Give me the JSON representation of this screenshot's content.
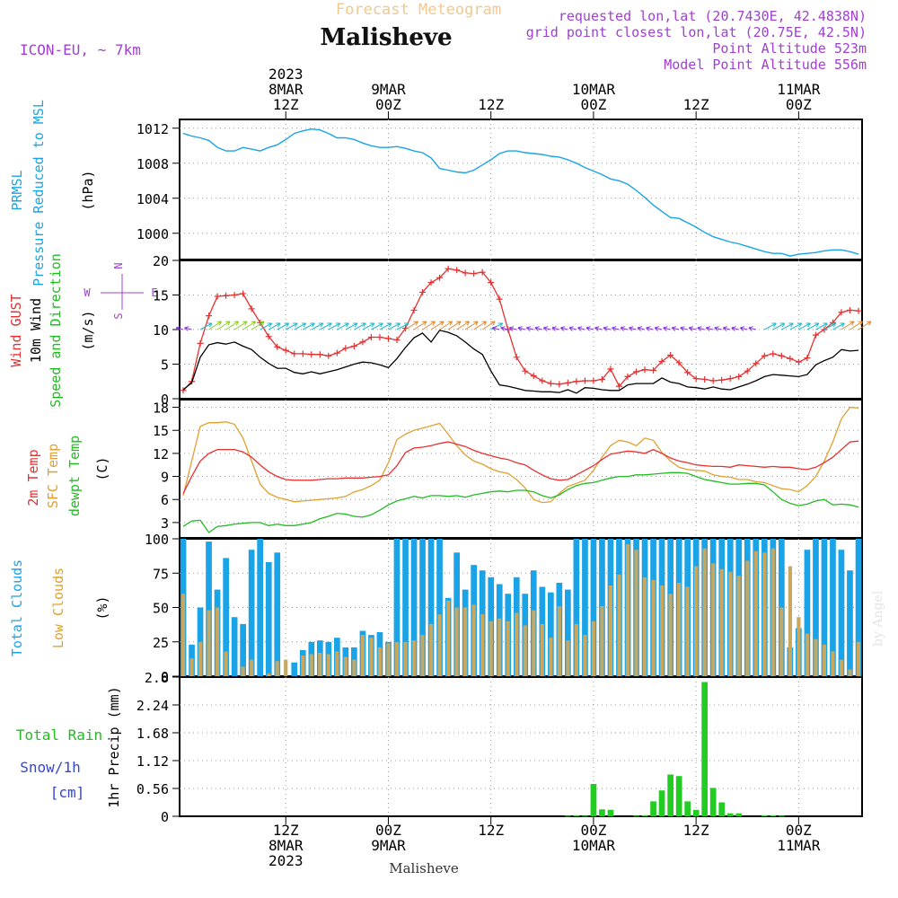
{
  "header": {
    "title_top": "Forecast Meteogram",
    "location": "Malisheve",
    "model": "ICON-EU, ~ 7km",
    "requested": "requested lon,lat (20.7430E, 42.4838N)",
    "grid_point": "grid point closest lon,lat (20.75E, 42.5N)",
    "point_altitude": "Point Altitude 523m",
    "model_altitude": "Model Point Altitude 556m",
    "watermark": "by Angel",
    "bottom_location": "Malisheve"
  },
  "time_axis": {
    "top_labels": [
      {
        "hour": 12,
        "lines": [
          "2023",
          "8MAR",
          "12Z"
        ]
      },
      {
        "hour": 24,
        "lines": [
          "9MAR",
          "00Z"
        ]
      },
      {
        "hour": 36,
        "lines": [
          "12Z"
        ]
      },
      {
        "hour": 48,
        "lines": [
          "10MAR",
          "00Z"
        ]
      },
      {
        "hour": 60,
        "lines": [
          "12Z"
        ]
      },
      {
        "hour": 72,
        "lines": [
          "11MAR",
          "00Z"
        ]
      }
    ],
    "bottom_labels": [
      {
        "hour": 12,
        "lines": [
          "12Z",
          "8MAR",
          "2023"
        ]
      },
      {
        "hour": 24,
        "lines": [
          "00Z",
          "9MAR"
        ]
      },
      {
        "hour": 36,
        "lines": [
          "12Z"
        ]
      },
      {
        "hour": 48,
        "lines": [
          "00Z",
          "10MAR"
        ]
      },
      {
        "hour": 60,
        "lines": [
          "12Z"
        ]
      },
      {
        "hour": 72,
        "lines": [
          "00Z",
          "11MAR"
        ]
      }
    ]
  },
  "panels": {
    "pressure": {
      "labels": [
        {
          "text": "PRMSL",
          "color": "#1aa3e6"
        },
        {
          "text": "Pressure Reduced to MSL",
          "color": "#1aa3e6"
        },
        {
          "text": "(hPa)",
          "color": "#000000"
        }
      ],
      "ticks": [
        1000,
        1004,
        1008,
        1012
      ]
    },
    "wind": {
      "labels": [
        {
          "text": "Wind GUST",
          "color": "#e83030"
        },
        {
          "text": "10m Wind",
          "color": "#000000"
        },
        {
          "text": "Speed and Direction",
          "color": "#22bb22"
        },
        {
          "text": "(m/s)",
          "color": "#000000"
        }
      ],
      "compass": {
        "n": "N",
        "s": "S",
        "w": "W",
        "e": "E"
      },
      "ticks": [
        0,
        5,
        10,
        15,
        20
      ]
    },
    "temp": {
      "labels": [
        {
          "text": "2m Temp",
          "color": "#e83030"
        },
        {
          "text": "SFC Temp",
          "color": "#e0a030"
        },
        {
          "text": "dewpt Temp",
          "color": "#22bb22"
        },
        {
          "text": "(C)",
          "color": "#000000"
        }
      ],
      "ticks": [
        3,
        6,
        9,
        12,
        15,
        18
      ]
    },
    "clouds": {
      "labels": [
        {
          "text": "Total Clouds",
          "color": "#1aa3e6"
        },
        {
          "text": "Low Clouds",
          "color": "#e0a030"
        },
        {
          "text": "(%)",
          "color": "#000000"
        }
      ],
      "ticks": [
        0,
        25,
        50,
        75,
        100
      ]
    },
    "precip": {
      "labels": [
        {
          "text": "Total Rain",
          "color": "#22bb22"
        },
        {
          "text": "Snow/1h",
          "color": "#3344dd"
        },
        {
          "text": "[cm]",
          "color": "#3344dd"
        },
        {
          "text": "1hr Precip (mm)",
          "color": "#000000"
        }
      ],
      "ticks": [
        0,
        0.56,
        1.12,
        1.68,
        2.24,
        2.8
      ]
    }
  },
  "colors": {
    "pressure": "#1aa3e6",
    "gust": "#e83030",
    "wind": "#000000",
    "temp2m": "#e83030",
    "sfc": "#e0a030",
    "dewpt": "#22bb22",
    "total_clouds": "#1aa3e6",
    "low_clouds": "#c8a860",
    "rain": "#22cc22",
    "purple": "#a040d0",
    "title_orange": "#f0c890"
  },
  "chart_data": [
    {
      "type": "line",
      "name": "pressure",
      "xlim": [
        0,
        79
      ],
      "ylim": [
        997,
        1013
      ],
      "series": [
        {
          "name": "PRMSL",
          "x_start": 0,
          "x_step": 1,
          "values": [
            1011.4,
            1011.1,
            1010.9,
            1010.6,
            1009.8,
            1009.4,
            1009.4,
            1009.8,
            1009.6,
            1009.4,
            1009.8,
            1010.1,
            1010.7,
            1011.4,
            1011.7,
            1011.9,
            1011.8,
            1011.4,
            1010.9,
            1010.9,
            1010.7,
            1010.3,
            1010.0,
            1009.8,
            1009.8,
            1009.9,
            1009.7,
            1009.4,
            1009.2,
            1008.6,
            1007.4,
            1007.2,
            1007.0,
            1006.9,
            1007.2,
            1007.8,
            1008.4,
            1009.1,
            1009.4,
            1009.4,
            1009.2,
            1009.1,
            1009.0,
            1008.8,
            1008.7,
            1008.4,
            1008.0,
            1007.5,
            1007.1,
            1006.7,
            1006.2,
            1006.0,
            1005.6,
            1004.9,
            1004.1,
            1003.2,
            1002.5,
            1001.8,
            1001.7,
            1001.2,
            1000.7,
            1000.1,
            999.6,
            999.3,
            999.0,
            998.8,
            998.5,
            998.2,
            997.9,
            997.7,
            997.7,
            997.4,
            997.6,
            997.7,
            997.8,
            998.0,
            998.1,
            998.1,
            997.9,
            997.6
          ]
        }
      ]
    },
    {
      "type": "line",
      "name": "wind",
      "xlim": [
        0,
        79
      ],
      "ylim": [
        0,
        20
      ],
      "series": [
        {
          "name": "Wind GUST",
          "x_start": 0,
          "x_step": 1,
          "values": [
            1.2,
            2.5,
            8,
            12,
            14.8,
            14.9,
            15,
            15.2,
            13,
            11,
            9,
            7.5,
            7,
            6.5,
            6.5,
            6.4,
            6.4,
            6.2,
            6.6,
            7.3,
            7.6,
            8.2,
            8.9,
            8.9,
            8.7,
            8.5,
            10.2,
            12.8,
            15.4,
            16.8,
            17.5,
            18.8,
            18.6,
            18.2,
            18.1,
            18.3,
            16.8,
            14.4,
            10,
            6,
            4,
            3.3,
            2.6,
            2.2,
            2.1,
            2.3,
            2.5,
            2.6,
            2.6,
            2.8,
            4.3,
            1.8,
            3.2,
            3.9,
            4.2,
            4.1,
            5.4,
            6.3,
            5.2,
            3.8,
            2.9,
            2.8,
            2.6,
            2.7,
            2.9,
            3.2,
            4,
            5.1,
            6.2,
            6.5,
            6.2,
            5.8,
            5.3,
            5.9,
            9.2,
            10,
            11,
            12.5,
            12.8,
            12.7
          ]
        },
        {
          "name": "10m Wind",
          "x_start": 0,
          "x_step": 1,
          "values": [
            1.3,
            2.3,
            6,
            7.8,
            8.1,
            7.9,
            8.2,
            7.6,
            7.1,
            6,
            5.1,
            4.4,
            4.4,
            3.8,
            3.6,
            3.9,
            3.6,
            3.9,
            4.2,
            4.6,
            5,
            5.3,
            5.2,
            4.9,
            4.5,
            5.8,
            7.4,
            8.8,
            9.5,
            8.2,
            9.9,
            9.6,
            9.1,
            8.2,
            7.2,
            6.4,
            4,
            2,
            1.8,
            1.5,
            1.2,
            1.1,
            1.0,
            1.0,
            0.9,
            1.3,
            0.8,
            1.6,
            1.5,
            1.3,
            1.2,
            1.2,
            2,
            2.2,
            2.2,
            2.2,
            3,
            2.4,
            2.2,
            1.7,
            1.6,
            1.4,
            1.7,
            1.4,
            1.3,
            1.7,
            2.1,
            2.6,
            3.2,
            3.5,
            3.4,
            3.3,
            3.2,
            3.5,
            4.9,
            5.5,
            6.0,
            7.1,
            6.9,
            7
          ]
        }
      ]
    },
    {
      "type": "line",
      "name": "temperature",
      "xlim": [
        0,
        79
      ],
      "ylim": [
        1,
        19
      ],
      "series": [
        {
          "name": "2m Temp",
          "x_start": 0,
          "x_step": 1,
          "values": [
            6.8,
            9,
            11,
            12,
            12.5,
            12.5,
            12.5,
            12.2,
            11.5,
            10.5,
            9.6,
            9,
            8.6,
            8.5,
            8.5,
            8.5,
            8.6,
            8.7,
            8.7,
            8.8,
            8.8,
            8.8,
            8.9,
            9.0,
            9.2,
            10.4,
            12.1,
            12.7,
            12.8,
            13,
            13.3,
            13.5,
            13.2,
            12.9,
            12.4,
            12,
            11.7,
            11.4,
            11.2,
            10.8,
            10.5,
            9.8,
            9.2,
            8.7,
            8.5,
            8.6,
            9.2,
            9.8,
            10.4,
            11.2,
            11.9,
            12.1,
            12.3,
            12.2,
            12,
            12.5,
            12,
            11.4,
            11,
            10.8,
            10.5,
            10.4,
            10.3,
            10.3,
            10.2,
            10.5,
            10.4,
            10.3,
            10.2,
            10.3,
            10.2,
            10.2,
            10,
            9.9,
            10.2,
            10.8,
            11.5,
            12.5,
            13.5,
            13.6
          ]
        },
        {
          "name": "SFC Temp",
          "x_start": 0,
          "x_step": 1,
          "values": [
            6.5,
            11,
            15.5,
            16,
            16,
            16.1,
            15.8,
            14,
            11,
            8,
            6.8,
            6.3,
            6,
            5.7,
            5.8,
            5.9,
            6,
            6.1,
            6.2,
            6.4,
            7,
            7.3,
            7.8,
            8.5,
            10.8,
            13.8,
            14.5,
            15,
            15.3,
            15.6,
            15.9,
            14.5,
            13,
            11.8,
            11,
            10.6,
            10,
            9.6,
            9.4,
            8.6,
            7.5,
            6,
            5.6,
            5.7,
            6.8,
            7.7,
            8.1,
            8.5,
            9.8,
            11.5,
            13,
            13.7,
            13.5,
            13,
            14,
            13.7,
            12.1,
            11,
            10.2,
            9.9,
            9.8,
            9.7,
            9.2,
            9,
            8.9,
            8.6,
            8.6,
            8.3,
            8.2,
            7.8,
            7.4,
            7.3,
            7.0,
            7.8,
            9,
            11,
            13.5,
            16.5,
            18,
            17.9
          ]
        },
        {
          "name": "dewpt Temp",
          "x_start": 0,
          "x_step": 1,
          "values": [
            2.5,
            3.2,
            3.3,
            1.7,
            2.5,
            2.6,
            2.8,
            2.9,
            3,
            3,
            2.6,
            2.8,
            2.6,
            2.6,
            2.8,
            3,
            3.5,
            3.8,
            4.2,
            4.1,
            3.8,
            3.7,
            4,
            4.6,
            5.3,
            5.8,
            6.1,
            6.4,
            6.2,
            6.5,
            6.5,
            6.4,
            6.5,
            6.3,
            6.6,
            6.8,
            7,
            7.1,
            7,
            7.2,
            7.2,
            7.0,
            6.5,
            6.2,
            6.6,
            7.3,
            7.8,
            8.1,
            8.2,
            8.5,
            8.8,
            9.0,
            9.0,
            9.2,
            9.2,
            9.3,
            9.4,
            9.5,
            9.5,
            9.4,
            9.0,
            8.6,
            8.4,
            8.2,
            8.0,
            8.0,
            8.1,
            8.1,
            7.9,
            7.0,
            6.0,
            5.5,
            5.2,
            5.4,
            5.8,
            6.0,
            5.3,
            5.4,
            5.3,
            5.0
          ]
        }
      ]
    },
    {
      "type": "bar",
      "name": "clouds",
      "xlim": [
        0,
        79
      ],
      "ylim": [
        0,
        100
      ],
      "series": [
        {
          "name": "Total Clouds",
          "x_start": 0,
          "x_step": 1,
          "values": [
            100,
            23,
            50,
            98,
            63,
            86,
            43,
            38,
            92,
            100,
            83,
            90,
            0,
            10,
            19,
            25,
            26,
            25,
            28,
            21,
            21,
            33,
            30,
            32,
            25,
            100,
            100,
            100,
            100,
            100,
            100,
            57,
            90,
            63,
            81,
            77,
            72,
            67,
            60,
            72,
            60,
            77,
            65,
            61,
            68,
            63,
            100,
            100,
            100,
            100,
            100,
            100,
            100,
            100,
            100,
            100,
            100,
            100,
            100,
            100,
            100,
            100,
            100,
            100,
            100,
            100,
            100,
            100,
            100,
            100,
            100,
            21,
            35,
            92,
            100,
            100,
            100,
            92,
            77,
            100
          ]
        },
        {
          "name": "Low Clouds",
          "x_start": 0,
          "x_step": 1,
          "values": [
            60,
            13,
            25,
            48,
            50,
            18,
            0,
            7,
            12,
            0,
            2,
            11,
            12,
            0,
            15,
            16,
            17,
            16,
            18,
            14,
            12,
            30,
            28,
            21,
            24,
            25,
            25,
            26,
            30,
            38,
            45,
            55,
            50,
            50,
            52,
            45,
            40,
            42,
            40,
            46,
            37,
            48,
            38,
            28,
            51,
            26,
            38,
            30,
            40,
            51,
            66,
            74,
            96,
            92,
            72,
            70,
            66,
            60,
            68,
            65,
            80,
            93,
            82,
            78,
            76,
            73,
            84,
            91,
            90,
            93,
            50,
            80,
            43,
            31,
            27,
            23,
            18,
            12,
            5,
            25
          ]
        }
      ]
    },
    {
      "type": "bar",
      "name": "precipitation",
      "xlim": [
        0,
        79
      ],
      "ylim": [
        0,
        2.8
      ],
      "series": [
        {
          "name": "Total Rain",
          "x_start": 0,
          "x_step": 1,
          "values": [
            0,
            0,
            0,
            0,
            0,
            0,
            0,
            0,
            0,
            0,
            0,
            0,
            0,
            0,
            0,
            0,
            0,
            0,
            0,
            0,
            0,
            0,
            0,
            0,
            0,
            0,
            0,
            0,
            0,
            0,
            0,
            0,
            0,
            0,
            0,
            0,
            0,
            0,
            0,
            0,
            0,
            0,
            0,
            0,
            0,
            0.01,
            0.02,
            0.01,
            0.65,
            0.14,
            0.13,
            0,
            0,
            0.01,
            0.02,
            0.3,
            0.52,
            0.84,
            0.81,
            0.3,
            0.13,
            2.7,
            0.57,
            0.28,
            0.06,
            0.06,
            0,
            0,
            0.02,
            0.02,
            0.01,
            0,
            0,
            0,
            0,
            0,
            0,
            0,
            0,
            0
          ]
        }
      ]
    }
  ]
}
